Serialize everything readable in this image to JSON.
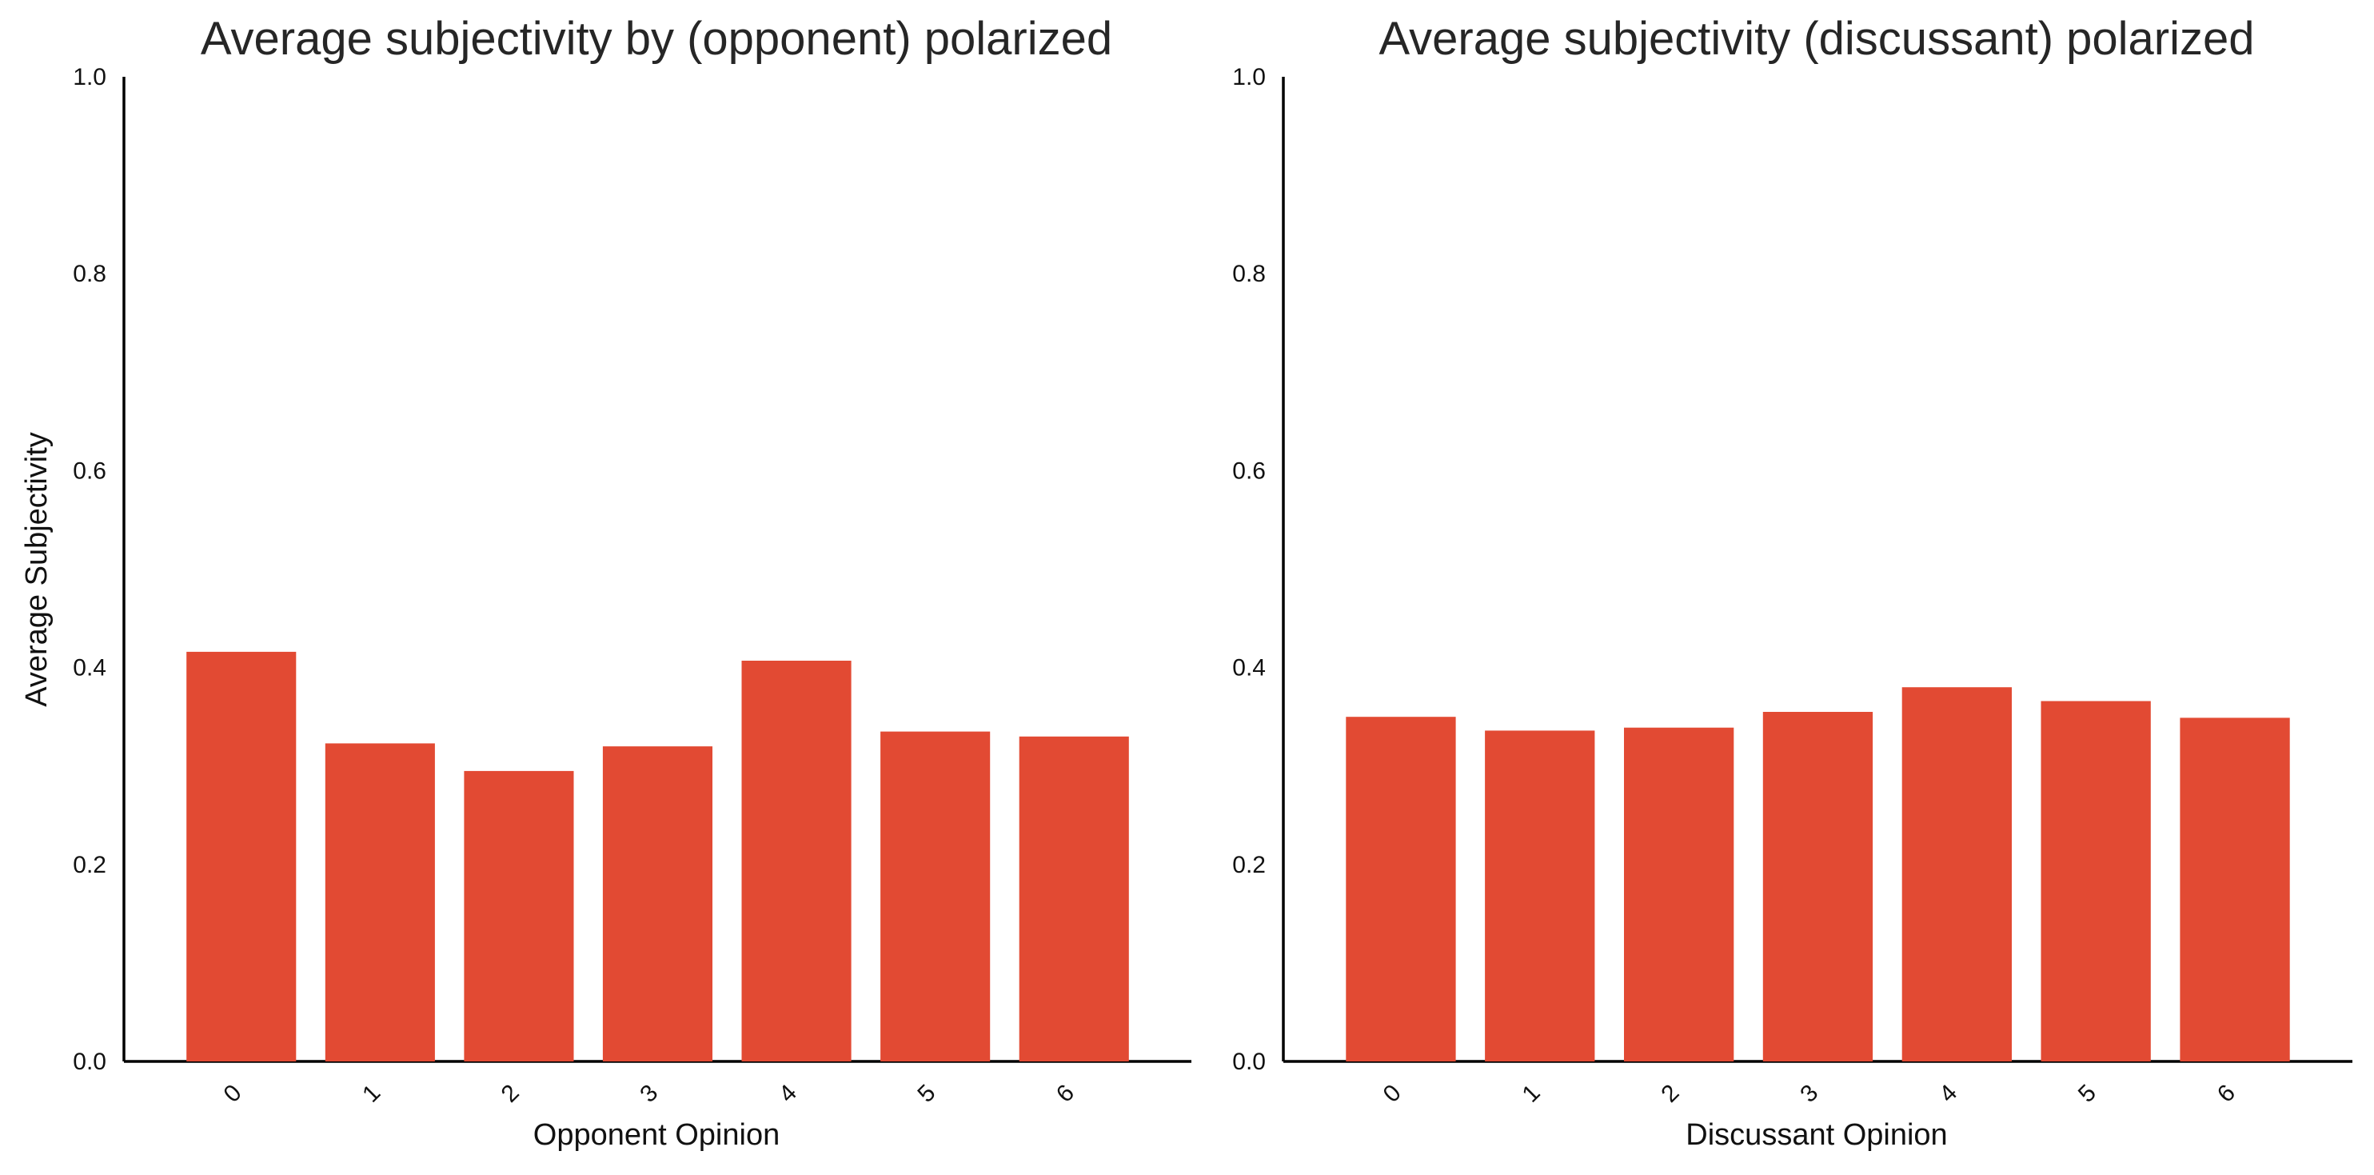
{
  "chart_data": [
    {
      "type": "bar",
      "title": "Average subjectivity by (opponent) polarized",
      "xlabel": "Opponent Opinion",
      "ylabel": "Average Subjectivity",
      "categories": [
        "0",
        "1",
        "2",
        "3",
        "4",
        "5",
        "6"
      ],
      "values": [
        0.416,
        0.323,
        0.295,
        0.32,
        0.407,
        0.335,
        0.33
      ],
      "ylim": [
        0,
        1.0
      ],
      "yticks": [
        "0.0",
        "0.2",
        "0.4",
        "0.6",
        "0.8",
        "1.0"
      ],
      "grid": false,
      "color": "#e24a33"
    },
    {
      "type": "bar",
      "title": "Average subjectivity (discussant) polarized",
      "xlabel": "Discussant Opinion",
      "ylabel": "",
      "categories": [
        "0",
        "1",
        "2",
        "3",
        "4",
        "5",
        "6"
      ],
      "values": [
        0.35,
        0.336,
        0.339,
        0.355,
        0.38,
        0.366,
        0.349
      ],
      "ylim": [
        0,
        1.0
      ],
      "yticks": [
        "0.0",
        "0.2",
        "0.4",
        "0.6",
        "0.8",
        "1.0"
      ],
      "grid": false,
      "color": "#e24a33"
    }
  ]
}
